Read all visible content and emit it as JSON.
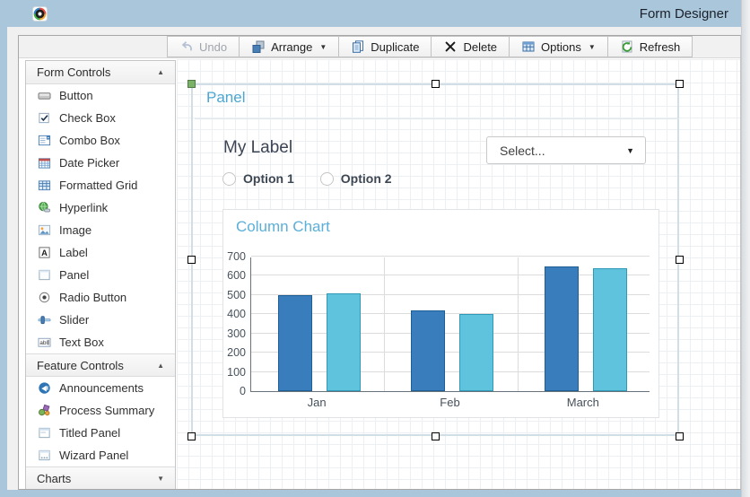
{
  "window": {
    "title": "Form Designer",
    "titlebar_color": "#a9c6da"
  },
  "toolbar": {
    "buttons": [
      {
        "id": "undo",
        "label": "Undo",
        "icon": "undo-icon",
        "disabled": true,
        "caret": false
      },
      {
        "id": "arrange",
        "label": "Arrange",
        "icon": "arrange-icon",
        "disabled": false,
        "caret": true
      },
      {
        "id": "duplicate",
        "label": "Duplicate",
        "icon": "duplicate-icon",
        "disabled": false,
        "caret": false
      },
      {
        "id": "delete",
        "label": "Delete",
        "icon": "delete-icon",
        "disabled": false,
        "caret": false
      },
      {
        "id": "options",
        "label": "Options",
        "icon": "options-icon",
        "disabled": false,
        "caret": true
      },
      {
        "id": "refresh",
        "label": "Refresh",
        "icon": "refresh-icon",
        "disabled": false,
        "caret": false
      }
    ]
  },
  "sidebar": {
    "sections": [
      {
        "title": "Form Controls",
        "state": "expanded",
        "items": [
          {
            "label": "Button",
            "icon": "button-icon"
          },
          {
            "label": "Check Box",
            "icon": "checkbox-icon"
          },
          {
            "label": "Combo Box",
            "icon": "combobox-icon"
          },
          {
            "label": "Date Picker",
            "icon": "datepicker-icon"
          },
          {
            "label": "Formatted Grid",
            "icon": "grid-icon"
          },
          {
            "label": "Hyperlink",
            "icon": "hyperlink-icon"
          },
          {
            "label": "Image",
            "icon": "image-icon"
          },
          {
            "label": "Label",
            "icon": "label-icon"
          },
          {
            "label": "Panel",
            "icon": "panel-icon"
          },
          {
            "label": "Radio Button",
            "icon": "radio-icon"
          },
          {
            "label": "Slider",
            "icon": "slider-icon"
          },
          {
            "label": "Text Box",
            "icon": "textbox-icon"
          }
        ]
      },
      {
        "title": "Feature Controls",
        "state": "expanded",
        "items": [
          {
            "label": "Announcements",
            "icon": "announcements-icon"
          },
          {
            "label": "Process Summary",
            "icon": "process-summary-icon"
          },
          {
            "label": "Titled Panel",
            "icon": "titled-panel-icon"
          },
          {
            "label": "Wizard Panel",
            "icon": "wizard-panel-icon"
          }
        ]
      },
      {
        "title": "Charts",
        "state": "collapsed",
        "items": []
      }
    ]
  },
  "canvas": {
    "panel_title": "Panel",
    "label_text": "My Label",
    "dropdown_value": "Select...",
    "radio_options": [
      "Option 1",
      "Option 2"
    ]
  },
  "chart_data": {
    "type": "bar",
    "title": "Column Chart",
    "categories": [
      "Jan",
      "Feb",
      "March"
    ],
    "series": [
      {
        "name": "series-1",
        "color": "#3a7dbd",
        "border": "#1d5e94",
        "values": [
          500,
          420,
          650
        ]
      },
      {
        "name": "series-2",
        "color": "#5fc3de",
        "border": "#2e9ab8",
        "values": [
          510,
          400,
          640
        ]
      }
    ],
    "ylim": [
      0,
      700
    ],
    "ytick_step": 100,
    "xlabel": "",
    "ylabel": "",
    "grid": true,
    "legend": "none"
  }
}
